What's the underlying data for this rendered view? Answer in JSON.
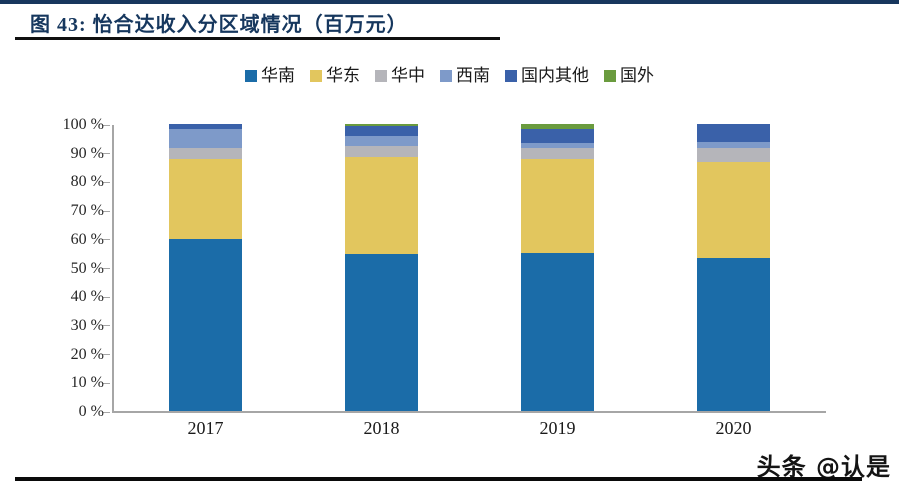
{
  "header": {
    "title": "图 43: 怡合达收入分区域情况（百万元）"
  },
  "watermark": "头条 @认是",
  "colors": {
    "accent_navy": "#17365d",
    "axis_gray": "#a6a6a6",
    "title_text": "#16375e"
  },
  "chart_data": {
    "type": "bar",
    "stacked": true,
    "unit": "percent",
    "title": "怡合达收入分区域情况（百万元）",
    "categories": [
      "2017",
      "2018",
      "2019",
      "2020"
    ],
    "series": [
      {
        "name": "华南",
        "color": "#1b6ca8",
        "values": [
          59.9,
          54.6,
          55.0,
          53.2
        ]
      },
      {
        "name": "华东",
        "color": "#e2c65e",
        "values": [
          27.9,
          33.8,
          32.8,
          33.7
        ]
      },
      {
        "name": "华中",
        "color": "#b5b5ba",
        "values": [
          3.7,
          3.8,
          4.0,
          4.7
        ]
      },
      {
        "name": "西南",
        "color": "#7e9ac9",
        "values": [
          6.6,
          3.8,
          1.7,
          2.3
        ]
      },
      {
        "name": "国内其他",
        "color": "#3a61a9",
        "values": [
          1.9,
          3.3,
          4.9,
          6.1
        ]
      },
      {
        "name": "国外",
        "color": "#6a9b3e",
        "values": [
          0,
          0.7,
          1.6,
          0
        ]
      }
    ],
    "ylim": [
      0,
      100
    ],
    "yticks": [
      "0 %",
      "10 %",
      "20 %",
      "30 %",
      "40 %",
      "50 %",
      "60 %",
      "70 %",
      "80 %",
      "90 %",
      "100 %"
    ],
    "xlabel": "",
    "ylabel": "",
    "grid": false,
    "legend_position": "top"
  }
}
